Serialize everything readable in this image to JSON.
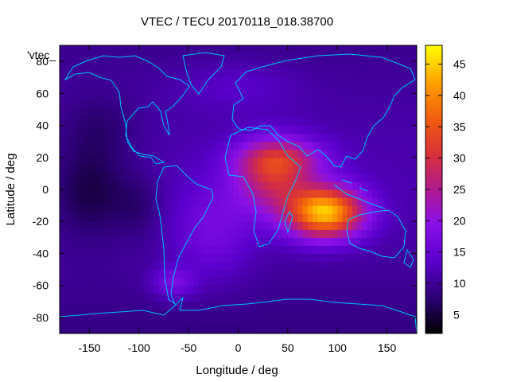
{
  "chart_data": {
    "type": "heatmap",
    "title": "VTEC / TECU 20170118_018.38700",
    "xlabel": "Longitude / deg",
    "ylabel": "Latitude / deg",
    "key_label": "'vtec_",
    "xlim": [
      -180,
      180
    ],
    "ylim": [
      -90,
      90
    ],
    "x_ticks": [
      -150,
      -100,
      -50,
      0,
      50,
      100,
      150
    ],
    "y_ticks": [
      -80,
      -60,
      -40,
      -20,
      0,
      20,
      40,
      60,
      80
    ],
    "colorbar": {
      "range": [
        2,
        48
      ],
      "ticks": [
        5,
        10,
        15,
        20,
        25,
        30,
        35,
        40,
        45
      ],
      "palette": "black-blue-purple-red-orange-yellow"
    },
    "peak": {
      "lon": 90,
      "lat": -14,
      "value": 46
    },
    "grid": false,
    "overlay": "coastlines",
    "colors": {
      "coastline": "#00bfff",
      "palette_low": "#000000",
      "palette_high": "#ffff00"
    }
  }
}
